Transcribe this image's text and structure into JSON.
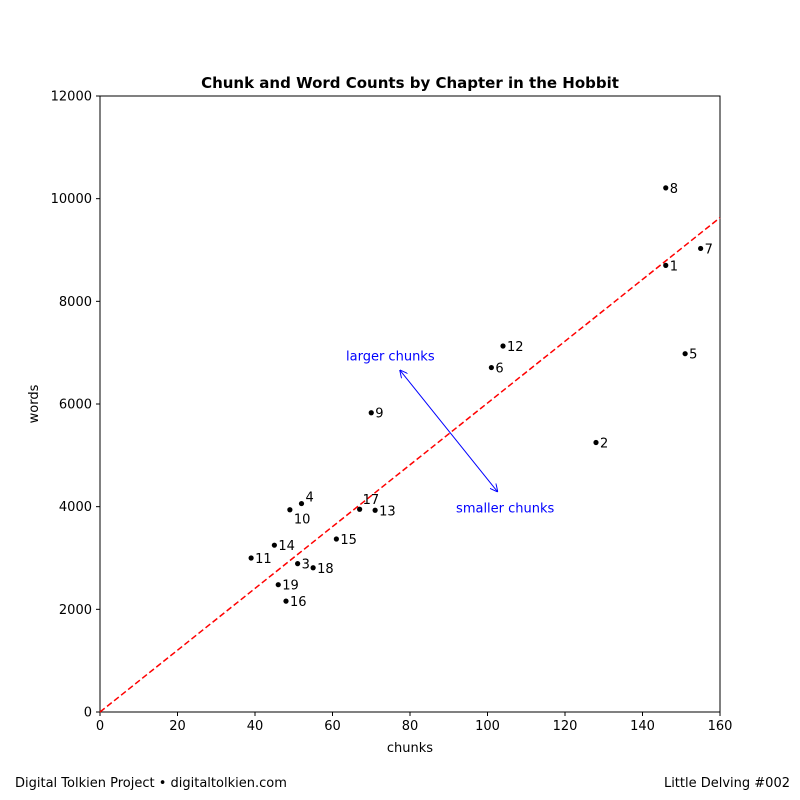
{
  "chart_data": {
    "type": "scatter",
    "title": "Chunk and Word Counts by Chapter in the Hobbit",
    "xlabel": "chunks",
    "ylabel": "words",
    "xlim": [
      0,
      160
    ],
    "ylim": [
      0,
      12000
    ],
    "xticks": [
      0,
      20,
      40,
      60,
      80,
      100,
      120,
      140,
      160
    ],
    "yticks": [
      0,
      2000,
      4000,
      6000,
      8000,
      10000,
      12000
    ],
    "grid": false,
    "colors": {
      "points": "#000000",
      "trend_line": "#ff0000",
      "annotation": "#0000ff"
    },
    "trend_line": {
      "style": "dashed",
      "points": [
        [
          0,
          0
        ],
        [
          160,
          9630
        ]
      ]
    },
    "points": [
      {
        "label": "1",
        "x": 146,
        "y": 8700
      },
      {
        "label": "2",
        "x": 128,
        "y": 5250
      },
      {
        "label": "3",
        "x": 51,
        "y": 2890
      },
      {
        "label": "4",
        "x": 52,
        "y": 4060
      },
      {
        "label": "5",
        "x": 151,
        "y": 6980
      },
      {
        "label": "6",
        "x": 101,
        "y": 6710
      },
      {
        "label": "7",
        "x": 155,
        "y": 9030
      },
      {
        "label": "8",
        "x": 146,
        "y": 10210
      },
      {
        "label": "9",
        "x": 70,
        "y": 5830
      },
      {
        "label": "10",
        "x": 49,
        "y": 3940
      },
      {
        "label": "11",
        "x": 39,
        "y": 3000
      },
      {
        "label": "12",
        "x": 104,
        "y": 7130
      },
      {
        "label": "13",
        "x": 71,
        "y": 3930
      },
      {
        "label": "14",
        "x": 45,
        "y": 3250
      },
      {
        "label": "15",
        "x": 61,
        "y": 3370
      },
      {
        "label": "16",
        "x": 48,
        "y": 2160
      },
      {
        "label": "17",
        "x": 67,
        "y": 3950
      },
      {
        "label": "18",
        "x": 55,
        "y": 2810
      },
      {
        "label": "19",
        "x": 46,
        "y": 2480
      }
    ],
    "annotations": {
      "larger": {
        "text": "larger chunks",
        "x": 77.5,
        "y": 6650
      },
      "smaller": {
        "text": "smaller chunks",
        "x": 102.5,
        "y": 4300
      }
    }
  },
  "footer": {
    "left": "Digital Tolkien Project • digitaltolkien.com",
    "right": "Little Delving #002"
  }
}
